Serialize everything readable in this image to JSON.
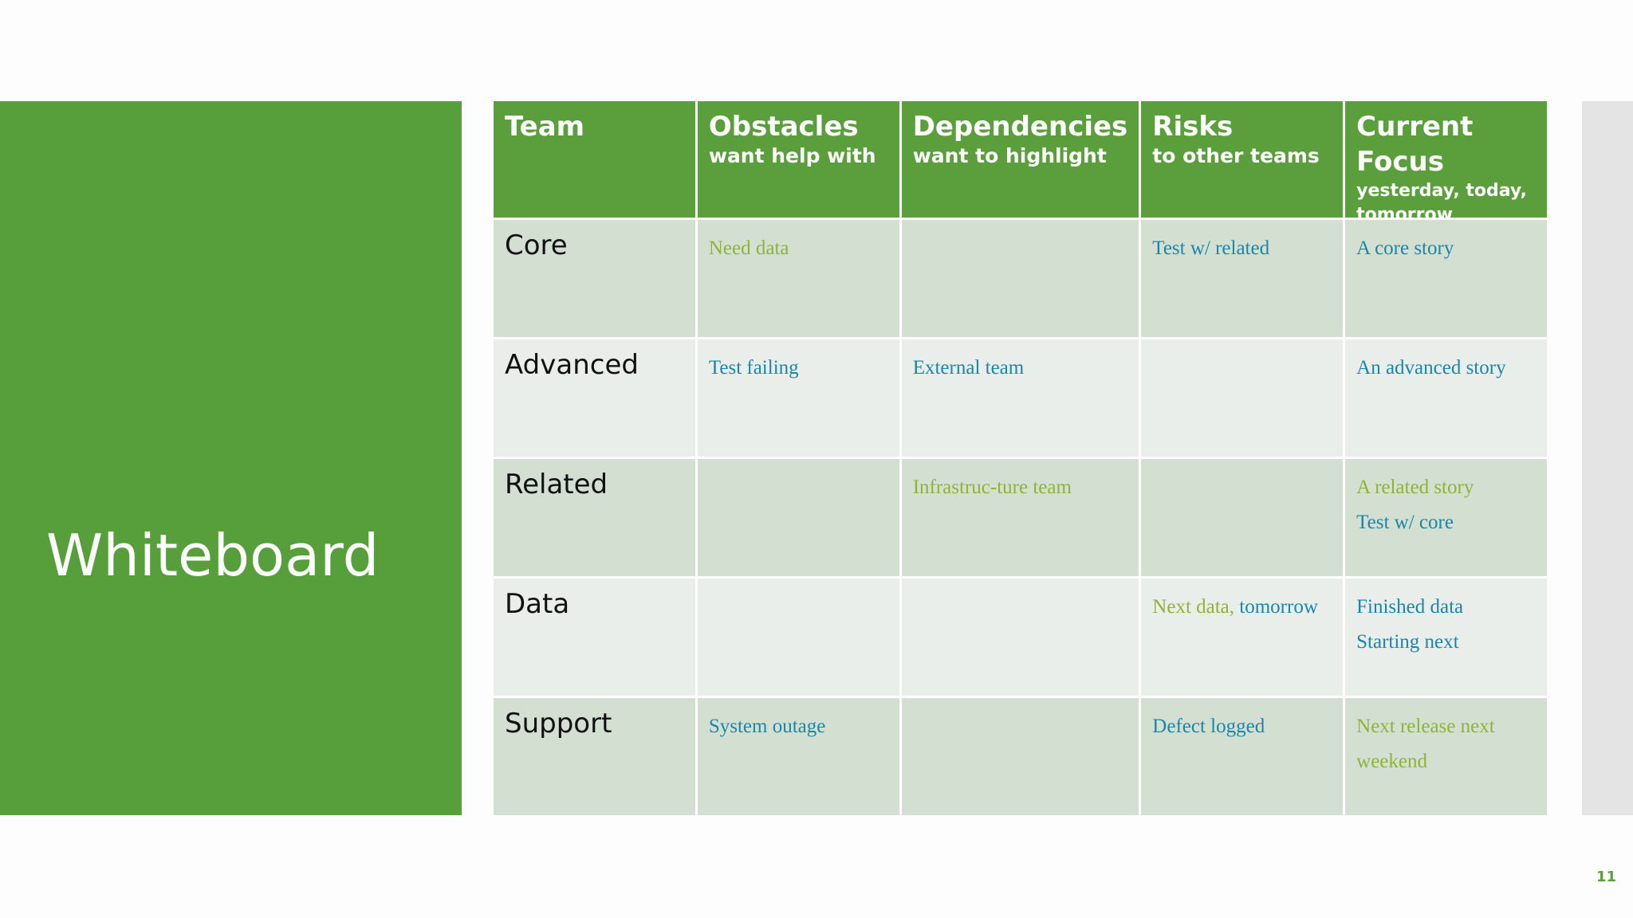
{
  "title": "Whiteboard",
  "table": {
    "header": [
      {
        "title": "Team"
      },
      {
        "title": "Obstacles",
        "subtitle": "want help with"
      },
      {
        "title": "Dependencies",
        "subtitle": "want to highlight"
      },
      {
        "title": "Risks",
        "subtitle": "to other teams"
      },
      {
        "title": "Current Focus",
        "subtitle": "yesterday, today, tomorrow"
      }
    ],
    "rows": [
      {
        "team": "Core",
        "cells": [
          [
            "Need data"
          ],
          [],
          [
            "Test w/ related"
          ],
          [
            "A core story"
          ]
        ]
      },
      {
        "team": "Advanced",
        "cells": [
          [
            "Test failing"
          ],
          [
            "External team"
          ],
          [],
          [
            "An advanced story"
          ]
        ]
      },
      {
        "team": "Related",
        "cells": [
          [],
          [
            "Infrastruc-ture team"
          ],
          [],
          [
            "A related story",
            "Test w/ core"
          ]
        ]
      },
      {
        "team": "Data",
        "cells": [
          [],
          [],
          [
            "Next data,",
            "tomorrow"
          ],
          [
            "Finished data",
            "Starting next"
          ]
        ]
      },
      {
        "team": "Support",
        "cells": [
          [
            "System outage"
          ],
          [],
          [
            "Defect logged"
          ],
          [
            "Next release next weekend"
          ]
        ]
      }
    ]
  },
  "page_number": "11"
}
